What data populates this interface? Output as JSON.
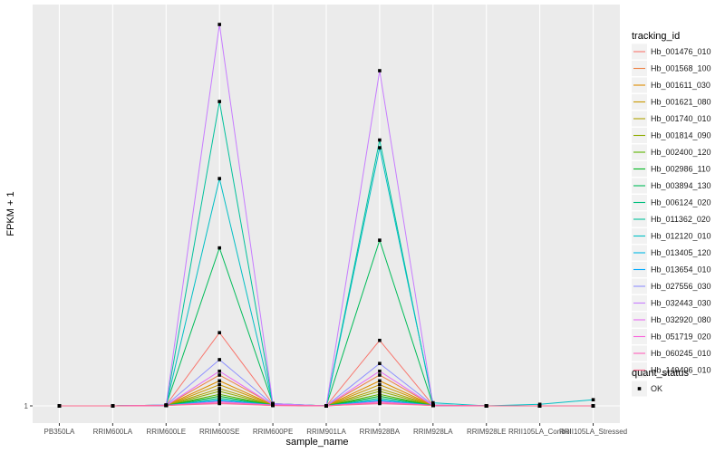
{
  "chart_data": {
    "type": "line",
    "xlabel": "sample_name",
    "ylabel": "FPKM + 1",
    "y_ticks": [
      {
        "value": 1,
        "label": "1"
      }
    ],
    "ylim": [
      1,
      100
    ],
    "categories": [
      "PB350LA",
      "RRIM600LA",
      "RRIM600LE",
      "RRIM600SE",
      "RRIM600PE",
      "RRIM901LA",
      "RRIM928BA",
      "RRIM928LA",
      "RRIM928LE",
      "RRII105LA_Control",
      "RRII105LA_Stressed"
    ],
    "series": [
      {
        "name": "Hb_001476_010",
        "color": "#F8766D",
        "values": [
          1,
          1,
          1.2,
          20,
          1.5,
          1,
          18,
          1.2,
          1,
          1,
          1
        ]
      },
      {
        "name": "Hb_001568_100",
        "color": "#EE8043",
        "values": [
          1,
          1,
          1.1,
          9,
          1.4,
          1,
          9,
          1.1,
          1,
          1,
          1
        ]
      },
      {
        "name": "Hb_001611_030",
        "color": "#DE8C00",
        "values": [
          1,
          1,
          1.1,
          7.5,
          1.3,
          1,
          7.5,
          1.1,
          1,
          1,
          1
        ]
      },
      {
        "name": "Hb_001621_080",
        "color": "#C99800",
        "values": [
          1,
          1,
          1.1,
          6.5,
          1.3,
          1,
          6.5,
          1.1,
          1,
          1,
          1
        ]
      },
      {
        "name": "Hb_001740_010",
        "color": "#AFA100",
        "values": [
          1,
          1,
          1.1,
          5.5,
          1.2,
          1,
          5.5,
          1.1,
          1,
          1,
          1
        ]
      },
      {
        "name": "Hb_001814_090",
        "color": "#8EAB00",
        "values": [
          1,
          1,
          1.1,
          4.8,
          1.2,
          1,
          4.8,
          1.1,
          1,
          1,
          1
        ]
      },
      {
        "name": "Hb_002400_120",
        "color": "#5EB300",
        "values": [
          1,
          1,
          1.1,
          4.0,
          1.2,
          1,
          4.0,
          1.1,
          1,
          1,
          1
        ]
      },
      {
        "name": "Hb_002986_110",
        "color": "#00B81F",
        "values": [
          1,
          1,
          1.1,
          3.5,
          1.2,
          1,
          3.5,
          1.1,
          1,
          1,
          1
        ]
      },
      {
        "name": "Hb_003894_130",
        "color": "#00BC59",
        "values": [
          1,
          1,
          1.2,
          42,
          1.6,
          1,
          44,
          1.2,
          1,
          1,
          1
        ]
      },
      {
        "name": "Hb_006124_020",
        "color": "#00BF7D",
        "values": [
          1,
          1,
          1.1,
          3.0,
          1.2,
          1,
          3.0,
          1.1,
          1,
          1,
          1
        ]
      },
      {
        "name": "Hb_011362_020",
        "color": "#00C19C",
        "values": [
          1,
          1,
          1.2,
          80,
          1.6,
          1,
          70,
          1.2,
          1,
          1,
          1
        ]
      },
      {
        "name": "Hb_012120_010",
        "color": "#00BFC4",
        "values": [
          1,
          1,
          1.1,
          60,
          1.5,
          1,
          68,
          1.8,
          1,
          1.4,
          2.6
        ]
      },
      {
        "name": "Hb_013405_120",
        "color": "#00B8E5",
        "values": [
          1,
          1,
          1.1,
          2.6,
          1.2,
          1,
          2.6,
          1.1,
          1,
          1,
          1
        ]
      },
      {
        "name": "Hb_013654_010",
        "color": "#00A9FF",
        "values": [
          1,
          1,
          1.1,
          2.3,
          1.2,
          1,
          2.3,
          1.1,
          1,
          1,
          1
        ]
      },
      {
        "name": "Hb_027556_030",
        "color": "#8F91FF",
        "values": [
          1,
          1,
          1.2,
          13,
          1.4,
          1,
          12,
          1.2,
          1,
          1,
          1
        ]
      },
      {
        "name": "Hb_032443_030",
        "color": "#C77CFF",
        "values": [
          1,
          1,
          1.2,
          100,
          1.6,
          1,
          88,
          1.2,
          1,
          1,
          1
        ]
      },
      {
        "name": "Hb_032920_080",
        "color": "#E76BF3",
        "values": [
          1,
          1,
          1.1,
          10,
          1.3,
          1,
          10,
          1.1,
          1,
          1,
          1
        ]
      },
      {
        "name": "Hb_051719_020",
        "color": "#FA62DB",
        "values": [
          1,
          1,
          1.1,
          2.1,
          1.2,
          1,
          2.1,
          1.1,
          1,
          1,
          1
        ]
      },
      {
        "name": "Hb_060245_010",
        "color": "#FF62BC",
        "values": [
          1,
          1,
          1.1,
          1.8,
          1.1,
          1,
          1.8,
          1.1,
          1,
          1,
          1
        ]
      },
      {
        "name": "Hb_140406_010",
        "color": "#FF6C91",
        "values": [
          1,
          1,
          1.1,
          1.6,
          1.1,
          1,
          1.6,
          1.1,
          1,
          1,
          1
        ]
      }
    ],
    "legend": {
      "title": "tracking_id",
      "position": "right",
      "shape_title": "quant_status",
      "shape_entries": [
        "OK"
      ]
    },
    "grid": true
  }
}
